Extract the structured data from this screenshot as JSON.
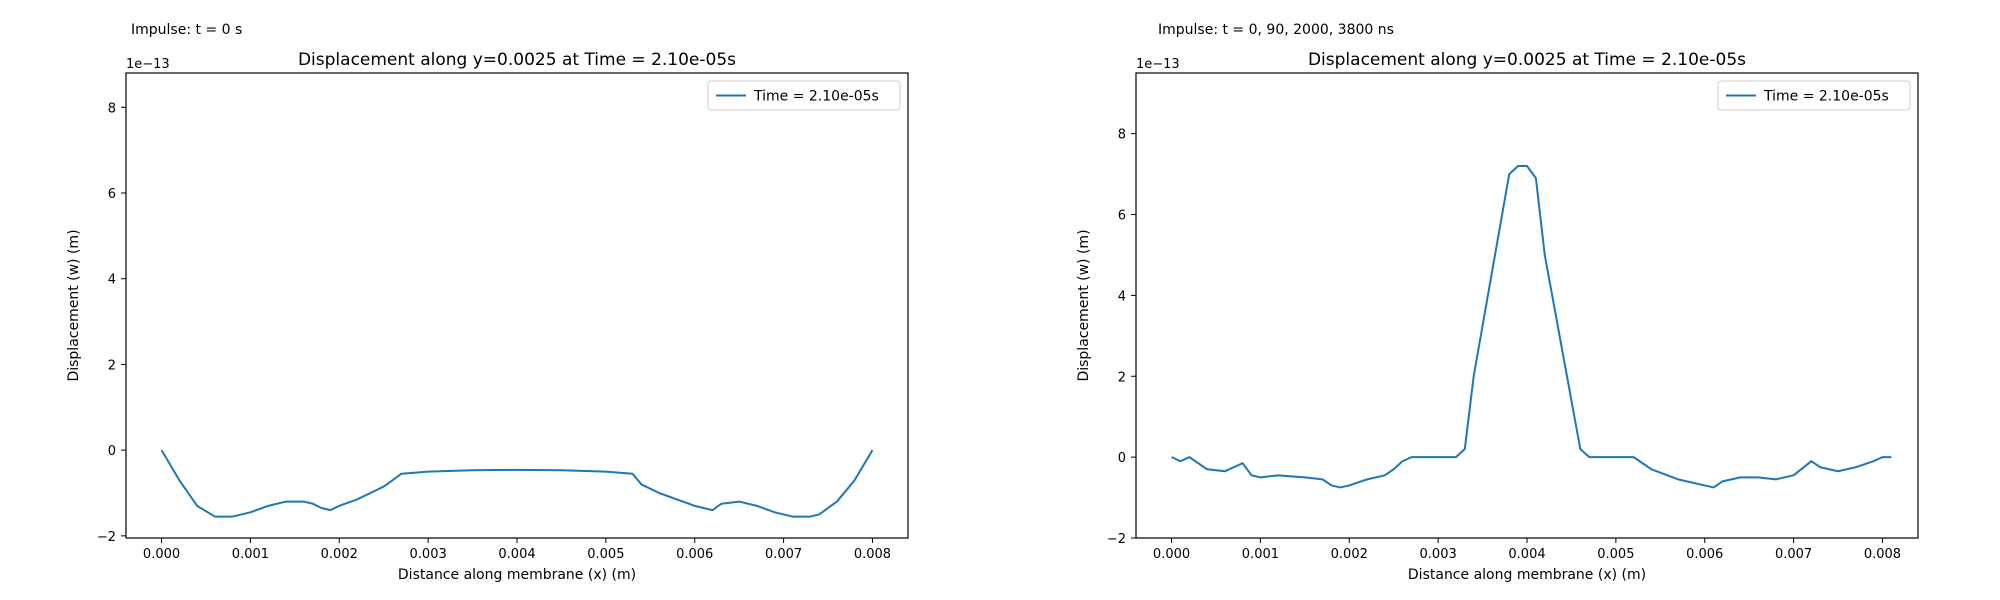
{
  "panels": [
    {
      "caption": "Impulse: t = 0 s",
      "exponent": "1e−13"
    },
    {
      "caption": "Impulse: t = 0, 90, 2000, 3800 ns",
      "exponent": "1e−13"
    }
  ],
  "chart_data": [
    {
      "type": "line",
      "title": "Displacement along y=0.0025 at Time = 2.10e-05s",
      "xlabel": "Distance along membrane (x) (m)",
      "ylabel": "Displacement (w) (m)",
      "y_scale_label": "1e−13",
      "xlim": [
        -0.0004,
        0.0084
      ],
      "ylim": [
        -2.05,
        8.8
      ],
      "xticks": [
        0.0,
        0.001,
        0.002,
        0.003,
        0.004,
        0.005,
        0.006,
        0.007,
        0.008
      ],
      "xtick_labels": [
        "0.000",
        "0.001",
        "0.002",
        "0.003",
        "0.004",
        "0.005",
        "0.006",
        "0.007",
        "0.008"
      ],
      "yticks": [
        -2,
        0,
        2,
        4,
        6,
        8
      ],
      "ytick_labels": [
        "−2",
        "0",
        "2",
        "4",
        "6",
        "8"
      ],
      "legend": "top-right",
      "grid": false,
      "color": "#1f77b4",
      "series": [
        {
          "name": "Time = 2.10e-05s",
          "x": [
            0.0,
            0.0002,
            0.0004,
            0.0006,
            0.0008,
            0.001,
            0.0012,
            0.0014,
            0.0016,
            0.0017,
            0.0018,
            0.0019,
            0.002,
            0.0022,
            0.0024,
            0.0025,
            0.0026,
            0.0027,
            0.003,
            0.0035,
            0.004,
            0.0045,
            0.005,
            0.0053,
            0.0054,
            0.0056,
            0.0058,
            0.006,
            0.0061,
            0.0062,
            0.0063,
            0.0065,
            0.0067,
            0.0069,
            0.0071,
            0.0073,
            0.0074,
            0.0076,
            0.0078,
            0.008
          ],
          "y": [
            0.0,
            -0.7,
            -1.3,
            -1.55,
            -1.55,
            -1.45,
            -1.3,
            -1.2,
            -1.2,
            -1.25,
            -1.35,
            -1.4,
            -1.3,
            -1.15,
            -0.95,
            -0.85,
            -0.7,
            -0.55,
            -0.5,
            -0.47,
            -0.46,
            -0.47,
            -0.5,
            -0.55,
            -0.8,
            -1.0,
            -1.15,
            -1.3,
            -1.35,
            -1.4,
            -1.25,
            -1.2,
            -1.3,
            -1.45,
            -1.55,
            -1.55,
            -1.5,
            -1.2,
            -0.7,
            0.0
          ]
        }
      ]
    },
    {
      "type": "line",
      "title": "Displacement along y=0.0025 at Time = 2.10e-05s",
      "xlabel": "Distance along membrane (x) (m)",
      "ylabel": "Displacement (w) (m)",
      "y_scale_label": "1e−13",
      "xlim": [
        -0.0004,
        0.0084
      ],
      "ylim": [
        -2.0,
        9.5
      ],
      "xticks": [
        0.0,
        0.001,
        0.002,
        0.003,
        0.004,
        0.005,
        0.006,
        0.007,
        0.008
      ],
      "xtick_labels": [
        "0.000",
        "0.001",
        "0.002",
        "0.003",
        "0.004",
        "0.005",
        "0.006",
        "0.007",
        "0.008"
      ],
      "yticks": [
        -2,
        0,
        2,
        4,
        6,
        8
      ],
      "ytick_labels": [
        "−2",
        "0",
        "2",
        "4",
        "6",
        "8"
      ],
      "legend": "top-right",
      "grid": false,
      "color": "#1f77b4",
      "series": [
        {
          "name": "Time = 2.10e-05s",
          "x": [
            0.0,
            0.0001,
            0.0002,
            0.0003,
            0.0004,
            0.0006,
            0.0008,
            0.0009,
            0.001,
            0.0012,
            0.0015,
            0.0017,
            0.0018,
            0.0019,
            0.002,
            0.0022,
            0.0024,
            0.0025,
            0.0026,
            0.0027,
            0.003,
            0.0032,
            0.0033,
            0.0034,
            0.0038,
            0.0039,
            0.004,
            0.0041,
            0.0042,
            0.0046,
            0.0047,
            0.0048,
            0.005,
            0.0052,
            0.0054,
            0.0057,
            0.006,
            0.0061,
            0.0062,
            0.0064,
            0.0066,
            0.0068,
            0.007,
            0.0072,
            0.0073,
            0.0075,
            0.0077,
            0.0079,
            0.008,
            0.0081
          ],
          "y": [
            0.0,
            -0.1,
            0.0,
            -0.15,
            -0.3,
            -0.35,
            -0.15,
            -0.45,
            -0.5,
            -0.45,
            -0.5,
            -0.55,
            -0.7,
            -0.75,
            -0.7,
            -0.55,
            -0.45,
            -0.3,
            -0.1,
            0.0,
            0.0,
            0.0,
            0.2,
            2.0,
            7.0,
            7.2,
            7.2,
            6.9,
            5.0,
            0.2,
            0.0,
            0.0,
            0.0,
            0.0,
            -0.3,
            -0.55,
            -0.7,
            -0.75,
            -0.6,
            -0.5,
            -0.5,
            -0.55,
            -0.45,
            -0.1,
            -0.25,
            -0.35,
            -0.25,
            -0.1,
            0.0,
            0.0
          ]
        }
      ]
    }
  ]
}
